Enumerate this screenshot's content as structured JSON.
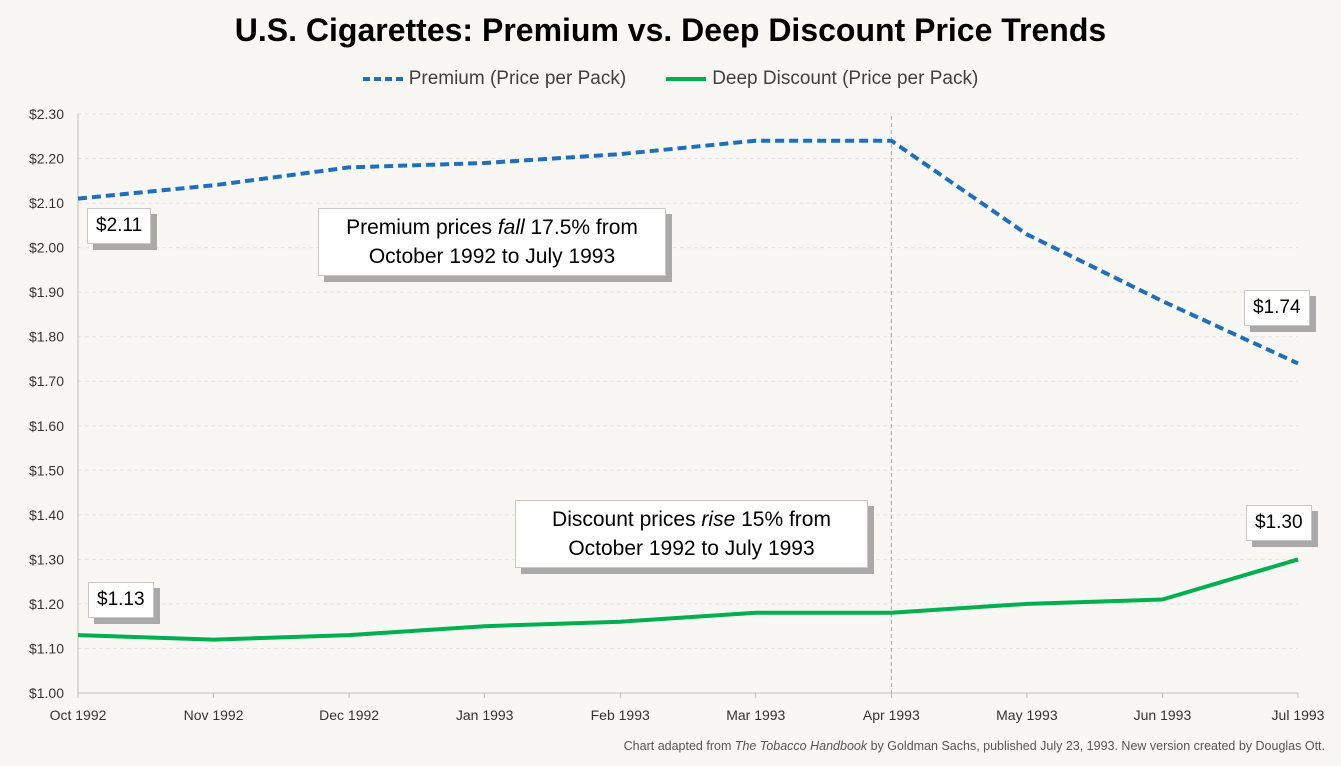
{
  "chart_data": {
    "type": "line",
    "title": "U.S. Cigarettes: Premium vs. Deep Discount Price Trends",
    "categories": [
      "Oct 1992",
      "Nov 1992",
      "Dec 1992",
      "Jan 1993",
      "Feb 1993",
      "Mar 1993",
      "Apr 1993",
      "May 1993",
      "Jun 1993",
      "Jul 1993"
    ],
    "series": [
      {
        "name": "Premium (Price per Pack)",
        "style": "dashed",
        "color": "#1f6fbf",
        "values": [
          2.11,
          2.14,
          2.18,
          2.19,
          2.21,
          2.24,
          2.24,
          2.03,
          1.88,
          1.74
        ]
      },
      {
        "name": "Deep Discount (Price per Pack)",
        "style": "solid",
        "color": "#00b050",
        "values": [
          1.13,
          1.12,
          1.13,
          1.15,
          1.16,
          1.18,
          1.18,
          1.2,
          1.21,
          1.3
        ]
      }
    ],
    "ylim": [
      1.0,
      2.3
    ],
    "yticks": [
      "$1.00",
      "$1.10",
      "$1.20",
      "$1.30",
      "$1.40",
      "$1.50",
      "$1.60",
      "$1.70",
      "$1.80",
      "$1.90",
      "$2.00",
      "$2.10",
      "$2.20",
      "$2.30"
    ],
    "reference_line": {
      "category": "Apr 1993",
      "style": "dashed",
      "color": "#a6a6a6"
    },
    "grid": true,
    "legend": "top-center",
    "data_labels": {
      "premium_start": "$2.11",
      "premium_end": "$1.74",
      "discount_start": "$1.13",
      "discount_end": "$1.30"
    },
    "annotations": {
      "premium": {
        "pre": "Premium prices ",
        "em": "fall",
        "post": " 17.5% from",
        "line2": "October 1992 to July 1993"
      },
      "discount": {
        "pre": "Discount prices ",
        "em": "rise",
        "post": " 15% from",
        "line2": "October 1992 to July 1993"
      }
    }
  },
  "footnote": {
    "pre": "Chart adapted from ",
    "em": "The Tobacco Handbook",
    "post": " by Goldman Sachs, published July 23, 1993. New version created by Douglas Ott."
  }
}
